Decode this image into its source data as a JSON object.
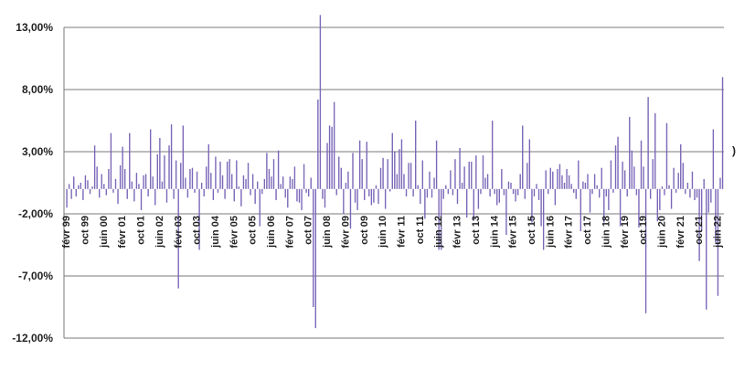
{
  "chart_data": {
    "type": "bar",
    "title": "",
    "xlabel": "",
    "ylabel": "",
    "ylim": [
      -12,
      13
    ],
    "grid": true,
    "y_ticks": [
      "13,00%",
      "8,00%",
      "3,00%",
      "-2,00%",
      "-7,00%",
      "-12,00%"
    ],
    "y_tick_values": [
      13,
      8,
      3,
      -2,
      -7,
      -12
    ],
    "x_tick_labels": [
      "févr 99",
      "oct 99",
      "juin 00",
      "févr 01",
      "oct 01",
      "juin 02",
      "févr 03",
      "oct 03",
      "juin 04",
      "févr 05",
      "oct 05",
      "juin 06",
      "févr 07",
      "oct 07",
      "juin 08",
      "févr 09",
      "oct 09",
      "juin 10",
      "févr 11",
      "oct 11",
      "juin 12",
      "févr 13",
      "oct 13",
      "juin 14",
      "févr 15",
      "oct 15",
      "juin 16",
      "févr 17",
      "oct 17",
      "juin 18",
      "févr 19",
      "oct 19",
      "juin 20",
      "févr 21",
      "oct 21",
      "juin 22"
    ],
    "series": [
      {
        "color": "#7b68b8",
        "start": "févr 99",
        "frequency": "monthly",
        "values": [
          -1.5,
          0.4,
          -0.8,
          1.0,
          -0.6,
          0.3,
          0.5,
          -0.9,
          1.1,
          0.7,
          -0.4,
          0.2,
          3.5,
          1.8,
          -0.7,
          1.2,
          0.4,
          -0.5,
          1.6,
          4.5,
          -0.3,
          0.8,
          -1.2,
          1.9,
          3.4,
          1.6,
          -0.8,
          4.5,
          0.6,
          -1.0,
          1.3,
          0.4,
          -1.7,
          1.1,
          1.2,
          -0.6,
          4.8,
          1.0,
          -1.3,
          2.8,
          4.1,
          0.6,
          2.7,
          -1.1,
          3.5,
          5.2,
          -0.8,
          2.3,
          -8.0,
          2.1,
          5.1,
          0.9,
          -0.7,
          1.6,
          1.7,
          -0.3,
          1.4,
          -4.9,
          0.5,
          -0.6,
          1.8,
          3.6,
          1.3,
          -0.9,
          2.6,
          -0.3,
          2.2,
          1.1,
          -0.8,
          2.2,
          2.4,
          1.2,
          -1.0,
          2.3,
          0.2,
          -1.4,
          1.1,
          0.8,
          2.1,
          -0.5,
          1.2,
          -1.2,
          0.6,
          -3.0,
          -0.4,
          0.8,
          2.9,
          1.6,
          1.0,
          2.4,
          -0.9,
          3.1,
          0.4,
          1.0,
          -0.7,
          -1.5,
          1.0,
          0.8,
          1.8,
          -1.0,
          -1.1,
          -1.7,
          2.0,
          -0.3,
          -0.6,
          0.9,
          -9.5,
          -11.2,
          7.2,
          14.0,
          -0.8,
          -1.5,
          3.7,
          5.1,
          5.0,
          7.0,
          -0.5,
          2.6,
          1.7,
          -2.0,
          0.5,
          1.4,
          -3.2,
          2.9,
          -1.1,
          -1.7,
          3.9,
          2.4,
          -0.9,
          3.8,
          -0.6,
          -1.3,
          -1.1,
          0.3,
          -1.2,
          1.7,
          2.5,
          -1.6,
          2.4,
          -0.2,
          4.5,
          3.0,
          1.2,
          3.2,
          4.0,
          1.2,
          -0.6,
          2.1,
          2.1,
          -0.6,
          5.5,
          0.3,
          -1.2,
          2.3,
          -2.4,
          -0.7,
          1.4,
          -0.7,
          0.9,
          3.9,
          -4.9,
          -4.9,
          -0.8,
          0.3,
          -0.4,
          1.5,
          -0.5,
          2.4,
          -1.2,
          3.3,
          0.5,
          1.8,
          -2.3,
          2.2,
          2.2,
          -2.5,
          2.7,
          -1.6,
          -0.4,
          2.7,
          0.9,
          1.2,
          -0.6,
          5.5,
          -0.4,
          -1.3,
          -1.1,
          1.6,
          -0.5,
          -3.7,
          0.6,
          0.5,
          -0.4,
          -1.0,
          -0.5,
          1.2,
          5.1,
          -0.8,
          2.1,
          4.0,
          -2.7,
          -0.6,
          0.4,
          -0.9,
          -3.0,
          -4.9,
          1.5,
          -0.4,
          1.7,
          1.4,
          -1.3,
          1.6,
          2.0,
          1.1,
          0.5,
          1.6,
          1.1,
          0.4,
          -0.3,
          -0.8,
          2.3,
          -3.4,
          0.6,
          0.5,
          1.2,
          -1.9,
          -0.4,
          1.2,
          0.3,
          -0.7,
          1.7,
          -2.7,
          -0.6,
          -1.7,
          2.3,
          -0.3,
          3.5,
          4.2,
          -3.0,
          2.2,
          1.5,
          -0.6,
          5.8,
          3.1,
          1.8,
          -0.5,
          -3.1,
          3.9,
          1.8,
          -10.0,
          7.4,
          -0.8,
          2.4,
          6.1,
          -2.6,
          -1.7,
          0.2,
          -0.5,
          5.3,
          0.3,
          -1.6,
          1.7,
          -0.3,
          1.3,
          3.6,
          2.1,
          -0.4,
          0.5,
          -0.7,
          1.4,
          -0.9,
          -0.7,
          -5.8,
          -3.4,
          0.8,
          -9.7,
          -1.9,
          -1.1,
          4.8,
          -4.3,
          -8.6,
          0.9,
          9.0
        ]
      }
    ]
  }
}
